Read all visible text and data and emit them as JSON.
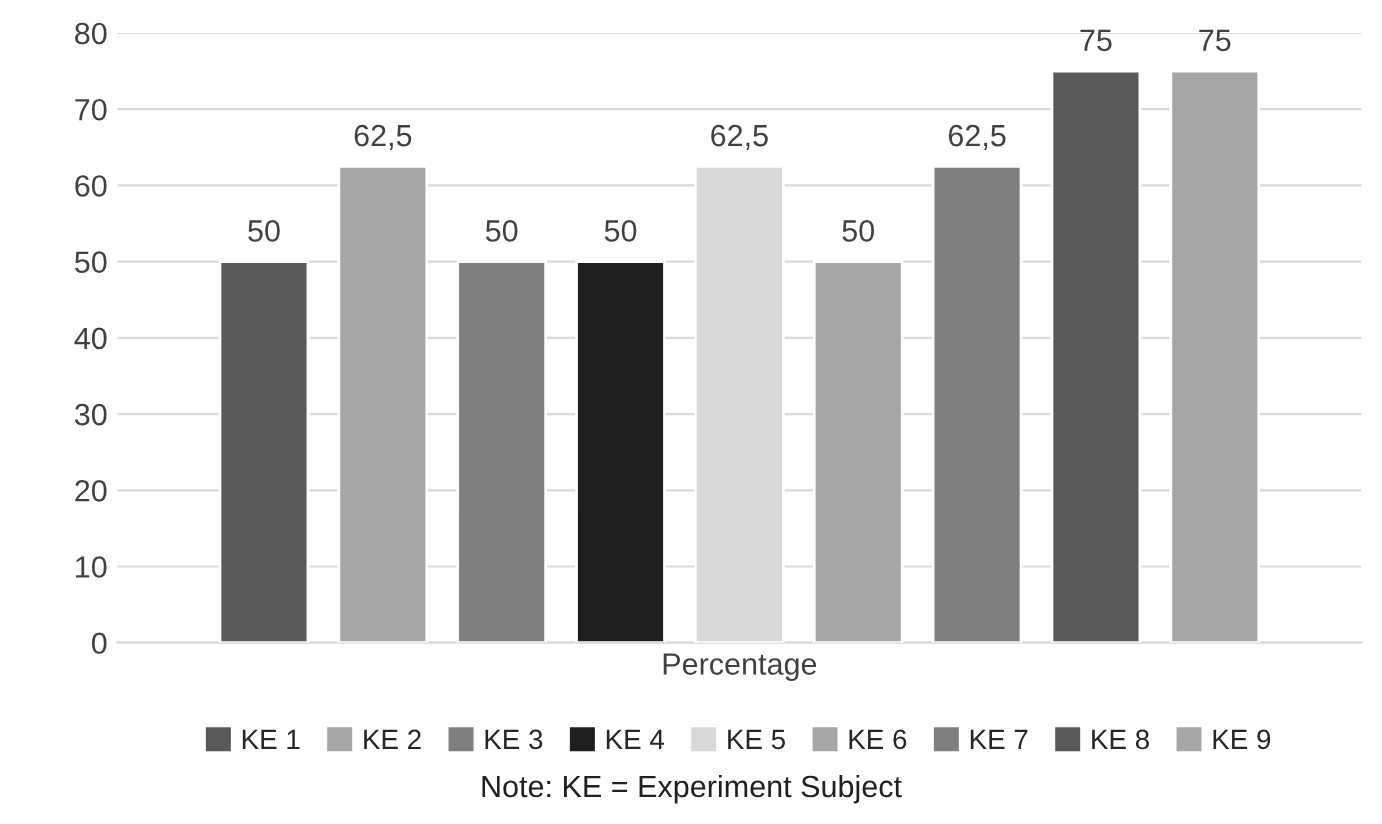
{
  "chart_data": {
    "type": "bar",
    "categories": [
      "Percentage"
    ],
    "series": [
      {
        "name": "KE 1",
        "color": "#595959",
        "values": [
          50
        ],
        "value_labels": [
          "50"
        ]
      },
      {
        "name": "KE 2",
        "color": "#a6a6a6",
        "values": [
          62.5
        ],
        "value_labels": [
          "62,5"
        ]
      },
      {
        "name": "KE 3",
        "color": "#7f7f7f",
        "values": [
          50
        ],
        "value_labels": [
          "50"
        ]
      },
      {
        "name": "KE 4",
        "color": "#1f1f1f",
        "values": [
          50
        ],
        "value_labels": [
          "50"
        ]
      },
      {
        "name": "KE 5",
        "color": "#d9d9d9",
        "values": [
          62.5
        ],
        "value_labels": [
          "62,5"
        ]
      },
      {
        "name": "KE 6",
        "color": "#a6a6a6",
        "values": [
          50
        ],
        "value_labels": [
          "50"
        ]
      },
      {
        "name": "KE 7",
        "color": "#7f7f7f",
        "values": [
          62.5
        ],
        "value_labels": [
          "62,5"
        ]
      },
      {
        "name": "KE 8",
        "color": "#595959",
        "values": [
          75
        ],
        "value_labels": [
          "75"
        ]
      },
      {
        "name": "KE 9",
        "color": "#a6a6a6",
        "values": [
          75
        ],
        "value_labels": [
          "75"
        ]
      }
    ],
    "ylim": [
      0,
      80
    ],
    "yticks": [
      0,
      10,
      20,
      30,
      40,
      50,
      60,
      70,
      80
    ],
    "grid": "y",
    "legend": "bottom",
    "annotations": [
      "Note: KE = Experiment Subject"
    ]
  }
}
